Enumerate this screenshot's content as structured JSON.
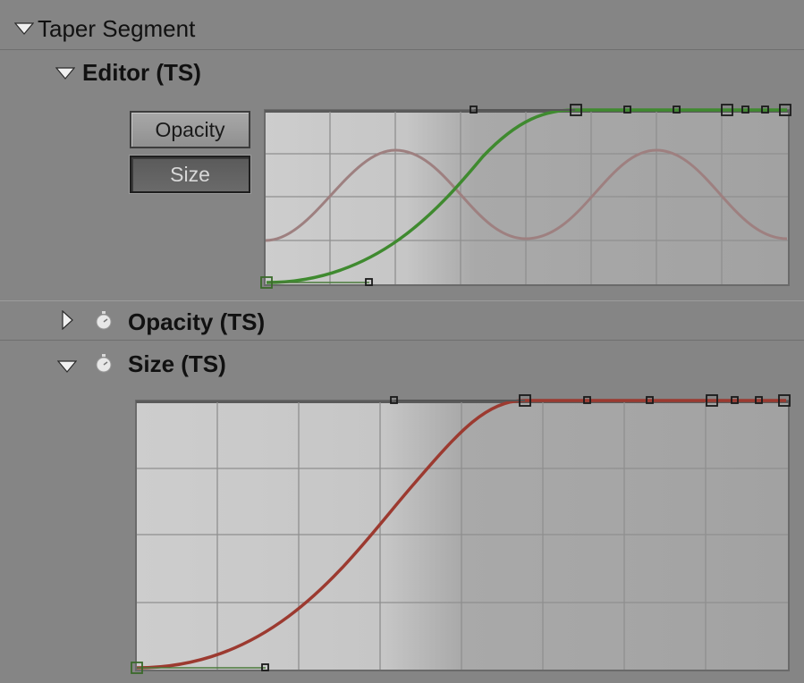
{
  "section": {
    "title": "Taper Segment"
  },
  "editor": {
    "title": "Editor (TS)",
    "buttons": {
      "opacity_label": "Opacity",
      "size_label": "Size",
      "active": "Size"
    }
  },
  "properties": {
    "opacity_label": "Opacity (TS)",
    "size_label": "Size (TS)",
    "opacity_expanded": false,
    "size_expanded": true
  },
  "icons": {
    "expand_open": "disclosure-triangle-down-icon",
    "expand_closed": "disclosure-triangle-right-icon",
    "stopwatch": "stopwatch-icon"
  },
  "colors": {
    "background": "#858585",
    "opacity_curve": "#3f8a2f",
    "size_curve": "#9c3a30",
    "opacity_wave": "#9e8080",
    "handle": "#1a1a1a"
  }
}
